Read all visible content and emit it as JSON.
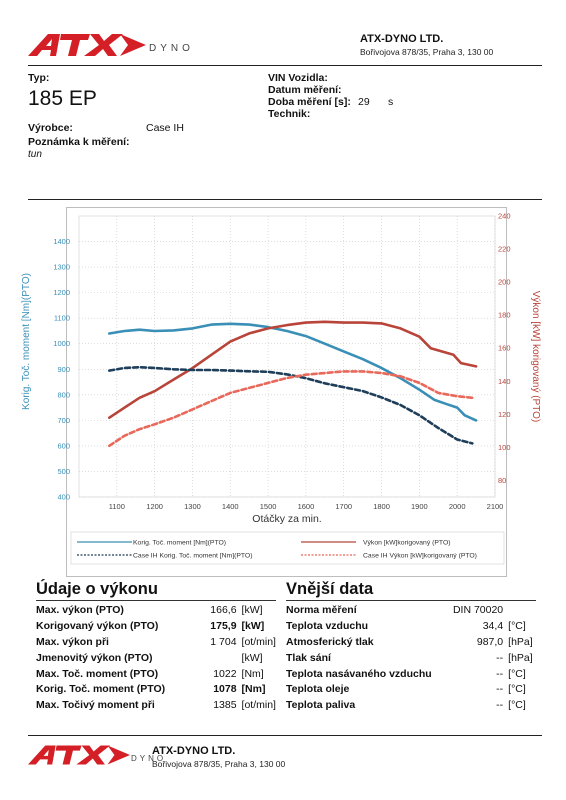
{
  "company": {
    "brand": "ATX",
    "sub": "DYNO",
    "name": "ATX-DYNO LTD.",
    "address": "Bořivojova 878/35, Praha 3, 130 00"
  },
  "vehicle": {
    "type_label": "Typ:",
    "type_value": "185 EP",
    "maker_label": "Výrobce:",
    "maker_value": "Case IH",
    "note_label": "Poznámka k měření:",
    "note_value": "tun",
    "vin_label": "VIN Vozidla:",
    "date_label": "Datum měření:",
    "duration_label": "Doba měření [s]:",
    "duration_value": "29",
    "duration_unit": "s",
    "tech_label": "Technik:"
  },
  "chart_data": {
    "type": "line",
    "xlabel": "Otáčky za min.",
    "ylabel_left": "Korig. Toč. moment [Nm](PTO)",
    "ylabel_right": "Výkon [kW] korigovaný (PTO)",
    "xlim": [
      1000,
      2100
    ],
    "ylim_left": [
      400,
      1500
    ],
    "ylim_right": [
      70,
      240
    ],
    "x_ticks": [
      1100,
      1200,
      1300,
      1400,
      1500,
      1600,
      1700,
      1800,
      1900,
      2000,
      2100
    ],
    "y_left_ticks": [
      400,
      500,
      600,
      700,
      800,
      900,
      1000,
      1100,
      1200,
      1300,
      1400
    ],
    "y_right_ticks": [
      80,
      100,
      120,
      140,
      160,
      180,
      200,
      220,
      240
    ],
    "grid": true,
    "series": [
      {
        "name": "Korig. Toč. moment [Nm](PTO)",
        "axis": "left",
        "color": "#3a8fb7",
        "dash": "solid",
        "x": [
          1080,
          1120,
          1160,
          1200,
          1250,
          1300,
          1350,
          1400,
          1450,
          1500,
          1550,
          1600,
          1650,
          1700,
          1750,
          1800,
          1850,
          1900,
          1940,
          1970,
          2000,
          2020,
          2050
        ],
        "y": [
          1040,
          1050,
          1055,
          1050,
          1052,
          1060,
          1075,
          1078,
          1075,
          1065,
          1050,
          1030,
          1000,
          970,
          940,
          905,
          865,
          820,
          780,
          765,
          750,
          720,
          700
        ]
      },
      {
        "name": "Výkon [kW]korigovaný (PTO)",
        "axis": "right",
        "color": "#b8443a",
        "dash": "solid",
        "x": [
          1080,
          1120,
          1160,
          1200,
          1250,
          1300,
          1350,
          1400,
          1450,
          1500,
          1550,
          1600,
          1650,
          1700,
          1750,
          1800,
          1850,
          1900,
          1930,
          1960,
          1990,
          2010,
          2050
        ],
        "y": [
          118,
          124,
          130,
          134,
          141,
          148,
          156,
          164,
          169,
          172,
          174,
          175.5,
          176,
          175.5,
          175.5,
          175,
          172,
          167,
          160,
          158,
          156,
          151,
          149
        ]
      },
      {
        "name": "Case IH Korig. Toč. moment [Nm](PTO)",
        "axis": "left",
        "color": "#1f3e5a",
        "dash": "dashed",
        "x": [
          1080,
          1120,
          1160,
          1200,
          1250,
          1300,
          1350,
          1400,
          1450,
          1500,
          1550,
          1600,
          1650,
          1700,
          1750,
          1800,
          1850,
          1900,
          1950,
          2000,
          2040
        ],
        "y": [
          895,
          905,
          908,
          905,
          900,
          897,
          897,
          895,
          892,
          890,
          880,
          865,
          845,
          830,
          815,
          790,
          760,
          720,
          670,
          625,
          610
        ]
      },
      {
        "name": "Case IH Výkon [kW]korigovaný (PTO)",
        "axis": "right",
        "color": "#e8685a",
        "dash": "dashed",
        "x": [
          1080,
          1120,
          1160,
          1200,
          1250,
          1300,
          1350,
          1400,
          1450,
          1500,
          1550,
          1600,
          1650,
          1700,
          1750,
          1800,
          1850,
          1900,
          1950,
          2000,
          2040
        ],
        "y": [
          101,
          107,
          111,
          114,
          118,
          123,
          128,
          133,
          136,
          139,
          142,
          144,
          145,
          146,
          146,
          145,
          143,
          139,
          133,
          131,
          130
        ]
      }
    ]
  },
  "legend": {
    "s1": "Korig. Toč. moment [Nm](PTO)",
    "s2": "Výkon [kW]korigovaný (PTO)",
    "s3": "Case IH Korig. Toč. moment [Nm](PTO)",
    "s4": "Case IH Výkon [kW]korigovaný (PTO)"
  },
  "performance": {
    "title": "Údaje o výkonu",
    "rows": [
      {
        "label": "Max. výkon (PTO)",
        "value": "166,6",
        "unit": "[kW]",
        "bold": false
      },
      {
        "label": "Korigovaný výkon (PTO)",
        "value": "175,9",
        "unit": "[kW]",
        "bold": true
      },
      {
        "label": "Max. výkon při",
        "value": "1 704",
        "unit": "[ot/min]",
        "bold": false
      },
      {
        "label": "Jmenovitý výkon (PTO)",
        "value": "",
        "unit": "[kW]",
        "bold": false
      },
      {
        "label": "Max. Toč. moment (PTO)",
        "value": "1022",
        "unit": "[Nm]",
        "bold": false
      },
      {
        "label": "Korig. Toč. moment (PTO)",
        "value": "1078",
        "unit": "[Nm]",
        "bold": true
      },
      {
        "label": "Max. Točivý moment při",
        "value": "1385",
        "unit": "[ot/min]",
        "bold": false
      }
    ]
  },
  "external": {
    "title": "Vnější data",
    "rows": [
      {
        "label": "Norma měření",
        "value": "DIN 70020",
        "unit": ""
      },
      {
        "label": "Teplota vzduchu",
        "value": "34,4",
        "unit": "[°C]"
      },
      {
        "label": "Atmosferický tlak",
        "value": "987,0",
        "unit": "[hPa]"
      },
      {
        "label": "Tlak sání",
        "value": "--",
        "unit": "[hPa]"
      },
      {
        "label": "Teplota nasávaného vzduchu",
        "value": "--",
        "unit": "[°C]"
      },
      {
        "label": "Teplota oleje",
        "value": "--",
        "unit": "[°C]"
      },
      {
        "label": "Teplota paliva",
        "value": "--",
        "unit": "[°C]"
      }
    ]
  }
}
